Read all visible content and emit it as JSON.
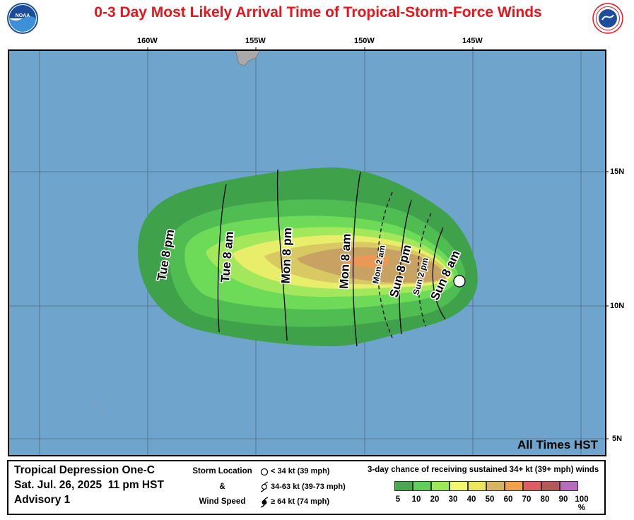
{
  "title": "0-3 Day Most Likely Arrival Time of Tropical-Storm-Force Winds",
  "logos": {
    "left_icon": "noaa-logo",
    "right_icon": "nws-logo",
    "left_text": "NOAA",
    "right_text": "NATIONAL WEATHER SERVICE"
  },
  "axes": {
    "longitudes": [
      "160W",
      "155W",
      "150W",
      "145W"
    ],
    "latitudes": [
      "15N",
      "10N",
      "5N"
    ]
  },
  "arrival_labels": [
    "Tue 8 pm",
    "Tue 8 am",
    "Mon 8 pm",
    "Mon 8 am",
    "Mon 2 am",
    "Sun 8 pm",
    "Sun 2 pm",
    "Sun 8 am"
  ],
  "timezone": "All Times HST",
  "storm": {
    "name": "Tropical Depression One-C",
    "datetime": "Sat. Jul. 26, 2025  11 pm HST",
    "advisory": "Advisory 1"
  },
  "legend": {
    "storm_location_label": "Storm Location",
    "ampersand": "&",
    "wind_speed_label": "Wind Speed",
    "symbols": [
      {
        "icon": "open-circle-icon",
        "label": "< 34 kt (39 mph)"
      },
      {
        "icon": "tropical-storm-icon",
        "label": "34-63 kt (39-73 mph)"
      },
      {
        "icon": "hurricane-icon",
        "label": "≥ 64 kt (74 mph)"
      }
    ],
    "chance_title": "3-day chance of receiving sustained 34+ kt (39+ mph) winds",
    "scale_colors": [
      "#4aa84f",
      "#5fd05b",
      "#9de85a",
      "#f2f570",
      "#ede65d",
      "#d6b464",
      "#f0a04d",
      "#de5e63",
      "#b35a58",
      "#b66bbb"
    ],
    "scale_ticks": [
      "5",
      "10",
      "20",
      "30",
      "40",
      "50",
      "60",
      "70",
      "80",
      "90",
      "100 %"
    ]
  },
  "colors": {
    "ocean": "#6fa5cc",
    "title": "#e8141b",
    "land": "#a9a9a9"
  }
}
